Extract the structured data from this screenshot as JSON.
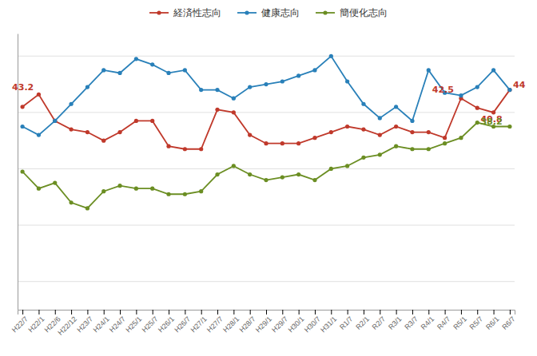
{
  "chart_data": {
    "type": "line",
    "categories": [
      "H22/7",
      "H22/1",
      "H22/6",
      "H22/12",
      "H23/7",
      "H24/1",
      "H24/7",
      "H25/1",
      "H25/7",
      "H26/1",
      "H26/7",
      "H27/1",
      "H27/7",
      "H28/1",
      "H28/7",
      "H29/1",
      "H29/7",
      "H30/1",
      "H30/7",
      "H31/1",
      "R1/7",
      "R2/1",
      "R2/7",
      "R3/1",
      "R3/7",
      "R4/1",
      "R4/7",
      "R5/1",
      "R5/7",
      "R6/1",
      "R6/7"
    ],
    "series": [
      {
        "name": "経済性志向",
        "color": "#c0392b",
        "marker": "circle",
        "values": [
          41.0,
          43.2,
          38.5,
          37.0,
          36.5,
          35.0,
          36.5,
          38.5,
          38.5,
          34.0,
          33.5,
          33.5,
          40.5,
          40.0,
          36.0,
          34.5,
          34.5,
          34.5,
          35.5,
          36.5,
          37.5,
          37.0,
          36.0,
          37.5,
          36.5,
          36.5,
          35.5,
          42.5,
          40.8,
          40.0,
          44.0
        ]
      },
      {
        "name": "健康志向",
        "color": "#2980b9",
        "marker": "circle",
        "values": [
          37.5,
          36.0,
          38.5,
          41.5,
          44.5,
          47.5,
          47.0,
          49.5,
          48.5,
          47.0,
          47.5,
          44.0,
          44.0,
          42.5,
          44.5,
          45.0,
          45.5,
          46.5,
          47.5,
          50.0,
          45.5,
          41.5,
          39.0,
          41.0,
          38.5,
          47.5,
          43.5,
          43.0,
          44.5,
          47.5,
          44.0
        ]
      },
      {
        "name": "簡便化志向",
        "color": "#6b8e23",
        "marker": "circle",
        "values": [
          29.5,
          26.5,
          27.5,
          24.0,
          23.0,
          26.0,
          27.0,
          26.5,
          26.5,
          25.5,
          25.5,
          26.0,
          29.0,
          30.5,
          29.0,
          28.0,
          28.5,
          29.0,
          28.0,
          30.0,
          30.5,
          32.0,
          32.5,
          34.0,
          33.5,
          33.5,
          34.5,
          35.5,
          38.2,
          37.5,
          37.5
        ]
      }
    ],
    "ylim": [
      5,
      54
    ],
    "yticks": [
      10,
      20,
      30,
      40,
      50
    ],
    "grid": true,
    "legend": "top",
    "tick_labels": "x",
    "annotations": [
      {
        "text": "43.2",
        "x": "H22/1",
        "y": 43.2,
        "color": "#c0392b"
      },
      {
        "text": "42.5",
        "x": "R5/1",
        "y": 42.5,
        "color": "#c0392b"
      },
      {
        "text": "40.8",
        "x": "R5/7",
        "y": 40.8,
        "color": "#c0392b"
      },
      {
        "text": "44",
        "x": "R6/7",
        "y": 44.0,
        "color": "#c0392b"
      },
      {
        "text": "38.2",
        "x": "R5/7",
        "y": 38.2,
        "color": "#6b8e23"
      }
    ]
  }
}
